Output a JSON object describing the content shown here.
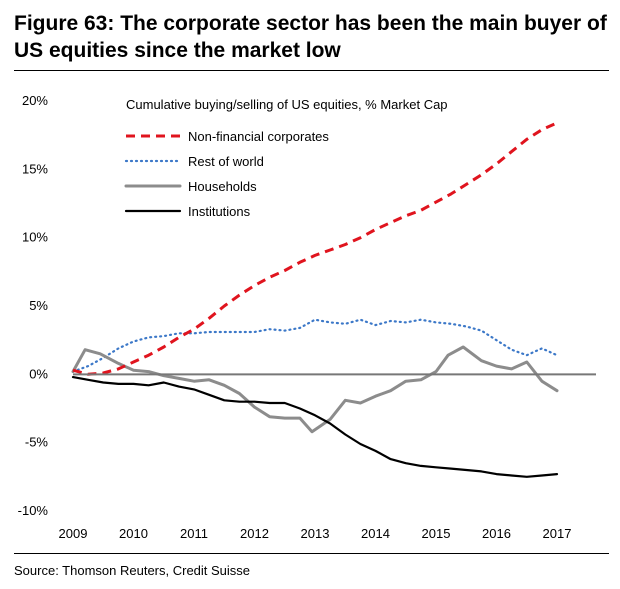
{
  "figure_title": "Figure 63: The corporate sector has been the main buyer of US equities since the market low",
  "source": "Source: Thomson Reuters, Credit Suisse",
  "chart_data": {
    "type": "line",
    "subtitle": "Cumulative buying/selling of US equities, % Market Cap",
    "y_ticks": [
      "20%",
      "15%",
      "10%",
      "5%",
      "0%",
      "-5%",
      "-10%"
    ],
    "y_tick_values": [
      20,
      15,
      10,
      5,
      0,
      -5,
      -10
    ],
    "x_ticks": [
      "2009",
      "2010",
      "2011",
      "2012",
      "2013",
      "2014",
      "2015",
      "2016",
      "2017"
    ],
    "x_tick_values": [
      2009,
      2010,
      2011,
      2012,
      2013,
      2014,
      2015,
      2016,
      2017
    ],
    "xlim": [
      2009,
      2017
    ],
    "ylim": [
      -10,
      20
    ],
    "grid": false,
    "zero_line": true,
    "legend_position": "top-left",
    "series": [
      {
        "name": "Non-financial corporates",
        "color": "#e0141e",
        "style": "dashed",
        "x": [
          2009.0,
          2009.25,
          2009.5,
          2009.75,
          2010.0,
          2010.25,
          2010.5,
          2010.75,
          2011.0,
          2011.25,
          2011.5,
          2011.75,
          2012.0,
          2012.25,
          2012.5,
          2012.75,
          2013.0,
          2013.25,
          2013.5,
          2013.75,
          2014.0,
          2014.25,
          2014.5,
          2014.75,
          2015.0,
          2015.25,
          2015.5,
          2015.75,
          2016.0,
          2016.25,
          2016.5,
          2016.75,
          2017.0
        ],
        "y": [
          0.3,
          0.0,
          0.1,
          0.4,
          0.9,
          1.4,
          2.0,
          2.7,
          3.3,
          4.1,
          5.0,
          5.8,
          6.5,
          7.1,
          7.6,
          8.2,
          8.7,
          9.1,
          9.5,
          10.0,
          10.6,
          11.1,
          11.6,
          12.0,
          12.6,
          13.2,
          13.9,
          14.6,
          15.4,
          16.3,
          17.2,
          17.9,
          18.4
        ]
      },
      {
        "name": "Rest of world",
        "color": "#3c78c8",
        "style": "dotted",
        "x": [
          2009.0,
          2009.25,
          2009.5,
          2009.75,
          2010.0,
          2010.25,
          2010.5,
          2010.75,
          2011.0,
          2011.25,
          2011.5,
          2011.75,
          2012.0,
          2012.25,
          2012.5,
          2012.75,
          2013.0,
          2013.25,
          2013.5,
          2013.75,
          2014.0,
          2014.25,
          2014.5,
          2014.75,
          2015.0,
          2015.25,
          2015.5,
          2015.75,
          2016.0,
          2016.25,
          2016.5,
          2016.75,
          2017.0
        ],
        "y": [
          0.2,
          0.6,
          1.2,
          1.9,
          2.4,
          2.7,
          2.8,
          3.0,
          3.0,
          3.1,
          3.1,
          3.1,
          3.1,
          3.3,
          3.2,
          3.4,
          4.0,
          3.8,
          3.7,
          4.0,
          3.6,
          3.9,
          3.8,
          4.0,
          3.8,
          3.7,
          3.5,
          3.2,
          2.5,
          1.8,
          1.4,
          1.9,
          1.4
        ]
      },
      {
        "name": "Households",
        "color": "#8c8c8c",
        "style": "solid",
        "x": [
          2009.0,
          2009.2,
          2009.45,
          2009.75,
          2010.0,
          2010.25,
          2010.5,
          2010.75,
          2011.0,
          2011.25,
          2011.5,
          2011.75,
          2012.0,
          2012.25,
          2012.5,
          2012.75,
          2012.95,
          2013.25,
          2013.5,
          2013.75,
          2014.0,
          2014.25,
          2014.5,
          2014.75,
          2015.0,
          2015.2,
          2015.45,
          2015.75,
          2016.0,
          2016.25,
          2016.5,
          2016.75,
          2017.0
        ],
        "y": [
          0.2,
          1.8,
          1.5,
          0.8,
          0.3,
          0.2,
          -0.1,
          -0.3,
          -0.5,
          -0.4,
          -0.8,
          -1.4,
          -2.4,
          -3.1,
          -3.2,
          -3.2,
          -4.2,
          -3.3,
          -1.9,
          -2.1,
          -1.6,
          -1.2,
          -0.5,
          -0.4,
          0.2,
          1.4,
          2.0,
          1.0,
          0.6,
          0.4,
          0.9,
          -0.5,
          -1.2
        ]
      },
      {
        "name": "Institutions",
        "color": "#000000",
        "style": "solid",
        "x": [
          2009.0,
          2009.25,
          2009.5,
          2009.75,
          2010.0,
          2010.25,
          2010.5,
          2010.75,
          2011.0,
          2011.25,
          2011.5,
          2011.75,
          2012.0,
          2012.25,
          2012.5,
          2012.75,
          2013.0,
          2013.25,
          2013.5,
          2013.75,
          2014.0,
          2014.25,
          2014.5,
          2014.75,
          2015.0,
          2015.25,
          2015.5,
          2015.75,
          2016.0,
          2016.25,
          2016.5,
          2016.75,
          2017.0
        ],
        "y": [
          -0.2,
          -0.4,
          -0.6,
          -0.7,
          -0.7,
          -0.8,
          -0.6,
          -0.9,
          -1.1,
          -1.5,
          -1.9,
          -2.0,
          -2.0,
          -2.1,
          -2.1,
          -2.5,
          -3.0,
          -3.6,
          -4.4,
          -5.1,
          -5.6,
          -6.2,
          -6.5,
          -6.7,
          -6.8,
          -6.9,
          -7.0,
          -7.1,
          -7.3,
          -7.4,
          -7.5,
          -7.4,
          -7.3
        ]
      }
    ]
  }
}
